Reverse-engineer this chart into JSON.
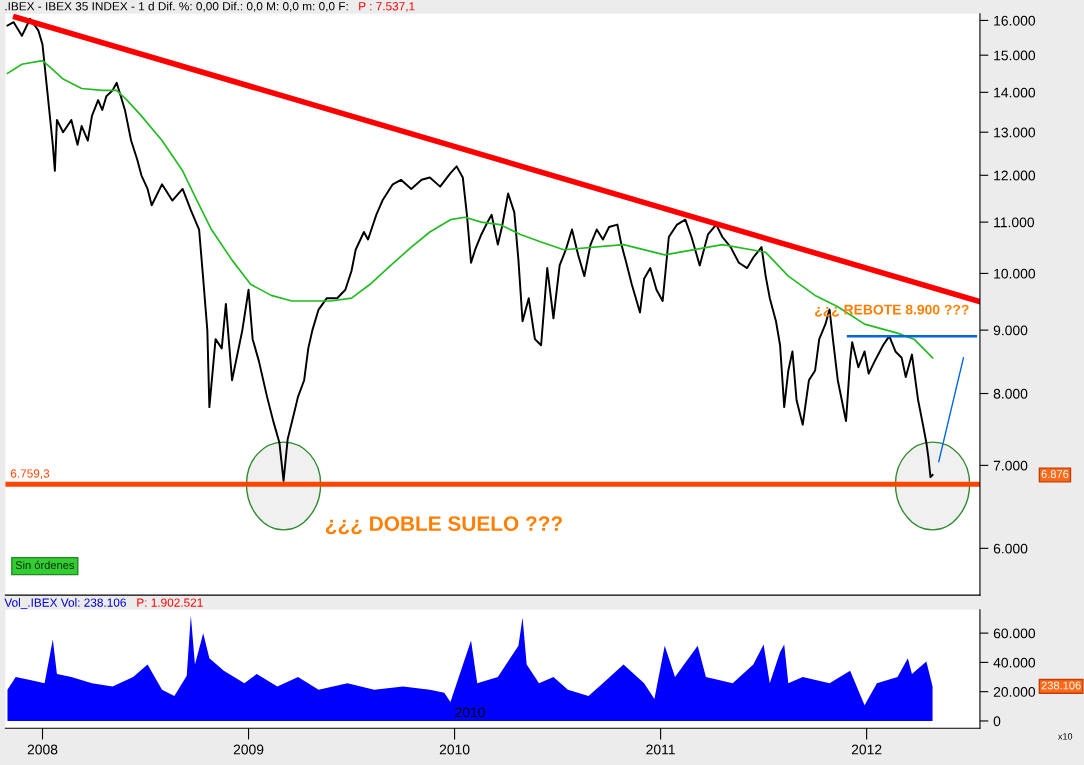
{
  "chart_data": [
    {
      "type": "line",
      "title": ".IBEX - IBEX 35 INDEX - 1 d Dif. %: 0,00 Dif.: 0,0 M: 0,0 m: 0,0 F:",
      "subtitle": "P : 7.537,1",
      "log": "y",
      "tick_labels": "y",
      "xlim": [
        2007.82,
        2012.55
      ],
      "ylim": [
        5500,
        16200
      ],
      "yticks": [
        {
          "value": 6000,
          "label": "6.000"
        },
        {
          "value": 7000,
          "label": "7.000"
        },
        {
          "value": 8000,
          "label": "8.000"
        },
        {
          "value": 9000,
          "label": "9.000"
        },
        {
          "value": 10000,
          "label": "10.000"
        },
        {
          "value": 11000,
          "label": "11.000"
        },
        {
          "value": 12000,
          "label": "12.000"
        },
        {
          "value": 13000,
          "label": "13.000"
        },
        {
          "value": 14000,
          "label": "14.000"
        },
        {
          "value": 15000,
          "label": "15.000"
        },
        {
          "value": 16000,
          "label": "16.000"
        }
      ],
      "series": [
        {
          "color": "#000000",
          "x": [
            2007.83,
            2007.86,
            2007.9,
            2007.94,
            2007.98,
            2008.0,
            2008.02,
            2008.05,
            2008.06,
            2008.07,
            2008.1,
            2008.14,
            2008.17,
            2008.19,
            2008.22,
            2008.24,
            2008.27,
            2008.29,
            2008.31,
            2008.34,
            2008.36,
            2008.38,
            2008.4,
            2008.43,
            2008.46,
            2008.48,
            2008.51,
            2008.53,
            2008.58,
            2008.63,
            2008.68,
            2008.72,
            2008.76,
            2008.78,
            2008.8,
            2008.81,
            2008.84,
            2008.87,
            2008.89,
            2008.92,
            2008.97,
            2009.0,
            2009.02,
            2009.05,
            2009.09,
            2009.12,
            2009.15,
            2009.17,
            2009.19,
            2009.22,
            2009.24,
            2009.27,
            2009.29,
            2009.31,
            2009.34,
            2009.38,
            2009.43,
            2009.47,
            2009.5,
            2009.52,
            2009.56,
            2009.58,
            2009.62,
            2009.65,
            2009.7,
            2009.74,
            2009.79,
            2009.84,
            2009.88,
            2009.93,
            2009.98,
            2010.01,
            2010.04,
            2010.06,
            2010.08,
            2010.1,
            2010.13,
            2010.16,
            2010.18,
            2010.21,
            2010.23,
            2010.26,
            2010.29,
            2010.31,
            2010.33,
            2010.36,
            2010.39,
            2010.42,
            2010.45,
            2010.48,
            2010.51,
            2010.54,
            2010.57,
            2010.6,
            2010.63,
            2010.66,
            2010.69,
            2010.72,
            2010.75,
            2010.79,
            2010.81,
            2010.83,
            2010.86,
            2010.9,
            2010.92,
            2010.95,
            2010.98,
            2011.01,
            2011.04,
            2011.08,
            2011.12,
            2011.15,
            2011.19,
            2011.23,
            2011.27,
            2011.3,
            2011.34,
            2011.38,
            2011.42,
            2011.45,
            2011.49,
            2011.51,
            2011.53,
            2011.56,
            2011.58,
            2011.6,
            2011.62,
            2011.64,
            2011.66,
            2011.69,
            2011.72,
            2011.75,
            2011.77,
            2011.8,
            2011.82,
            2011.84,
            2011.86,
            2011.9,
            2011.92,
            2011.93,
            2011.96,
            2011.99,
            2012.01,
            2012.04,
            2012.08,
            2012.11,
            2012.14,
            2012.17,
            2012.19,
            2012.22,
            2012.25,
            2012.27,
            2012.29,
            2012.3,
            2012.31,
            2012.32
          ],
          "values": [
            15850,
            15950,
            15550,
            16050,
            15700,
            15300,
            14200,
            12700,
            12100,
            13300,
            13000,
            13300,
            12700,
            13150,
            12800,
            13400,
            13800,
            13550,
            13900,
            14050,
            14250,
            13900,
            13550,
            12800,
            12350,
            12000,
            11700,
            11350,
            11800,
            11450,
            11700,
            11250,
            10850,
            9900,
            9000,
            7800,
            8850,
            8700,
            9450,
            8200,
            9000,
            9700,
            8850,
            8500,
            7950,
            7600,
            7300,
            6800,
            7350,
            7700,
            7950,
            8200,
            8700,
            9000,
            9350,
            9550,
            9550,
            9700,
            10050,
            10450,
            10800,
            10650,
            11150,
            11450,
            11800,
            11900,
            11700,
            11900,
            11950,
            11750,
            12050,
            12200,
            11950,
            11150,
            10200,
            10450,
            10750,
            11000,
            11150,
            10550,
            10900,
            11600,
            11200,
            10250,
            9150,
            9550,
            8850,
            8750,
            10100,
            9200,
            10150,
            10450,
            10850,
            10350,
            9950,
            10550,
            10850,
            10650,
            10900,
            10950,
            10550,
            10250,
            9800,
            9300,
            9900,
            10100,
            9700,
            9500,
            10700,
            10950,
            11050,
            10700,
            10150,
            10750,
            10950,
            10700,
            10500,
            10200,
            10100,
            10300,
            10500,
            9950,
            9550,
            9150,
            8750,
            7800,
            8350,
            8650,
            7900,
            7550,
            8200,
            8350,
            8850,
            9100,
            9350,
            8750,
            8200,
            7600,
            8500,
            8800,
            8400,
            8650,
            8300,
            8500,
            8750,
            8900,
            8650,
            8550,
            8250,
            8600,
            7900,
            7600,
            7300,
            7100,
            6850,
            6876
          ]
        },
        {
          "color": "#22bb22",
          "x": [
            2007.83,
            2007.9,
            2008.0,
            2008.05,
            2008.1,
            2008.19,
            2008.29,
            2008.36,
            2008.41,
            2008.48,
            2008.58,
            2008.68,
            2008.75,
            2008.82,
            2008.92,
            2009.01,
            2009.11,
            2009.21,
            2009.3,
            2009.4,
            2009.5,
            2009.59,
            2009.69,
            2009.79,
            2009.88,
            2009.98,
            2010.05,
            2010.13,
            2010.22,
            2010.32,
            2010.42,
            2010.53,
            2010.82,
            2011.02,
            2011.3,
            2011.51,
            2011.62,
            2011.75,
            2011.86,
            2011.99,
            2012.15,
            2012.23,
            2012.32
          ],
          "values": [
            14500,
            14750,
            14850,
            14600,
            14350,
            14100,
            14050,
            14050,
            13800,
            13400,
            12800,
            12100,
            11450,
            10850,
            10250,
            9800,
            9600,
            9500,
            9500,
            9500,
            9550,
            9800,
            10150,
            10500,
            10800,
            11050,
            11100,
            11000,
            10950,
            10750,
            10600,
            10450,
            10550,
            10350,
            10550,
            10400,
            9950,
            9600,
            9400,
            9100,
            8950,
            8850,
            8550
          ]
        },
        {
          "color": "#ff0000",
          "x": [
            2007.87,
            2012.54
          ],
          "values": [
            16100,
            9500
          ]
        },
        {
          "color": "#0066dd",
          "x": [
            2011.91,
            2012.53
          ],
          "values": [
            8900,
            8900
          ]
        },
        {
          "color": "#0066dd",
          "x": [
            2012.35,
            2012.47
          ],
          "values": [
            7050,
            8550
          ]
        }
      ],
      "ref_lines": [
        {
          "axis": "y",
          "value": 6759.3,
          "label": "6.759,3",
          "color": "#ff4400"
        }
      ],
      "annotations": [
        "6.876",
        "¿¿¿ REBOTE 8.900 ???",
        "¿¿¿ DOBLE SUELO ???",
        "Sin órdenes"
      ]
    },
    {
      "type": "area",
      "title": "Vol_.IBEX Vol: 238.106",
      "subtitle": "P: 1.902.521",
      "xlim": [
        2007.82,
        2012.55
      ],
      "ylim": [
        -5000,
        76000
      ],
      "xticks": [
        2008,
        2009,
        2010,
        2011,
        2012
      ],
      "yticks": [
        0,
        {
          "value": 20000,
          "label": "20.000"
        },
        {
          "value": 40000,
          "label": "40.000"
        },
        {
          "value": 60000,
          "label": "60.000"
        }
      ],
      "series": [
        {
          "color": "#0000ff",
          "x": [
            2007.83,
            2007.87,
            2007.94,
            2008.01,
            2008.05,
            2008.07,
            2008.14,
            2008.24,
            2008.34,
            2008.44,
            2008.51,
            2008.58,
            2008.64,
            2008.7,
            2008.72,
            2008.74,
            2008.78,
            2008.81,
            2008.88,
            2008.98,
            2009.04,
            2009.14,
            2009.24,
            2009.34,
            2009.48,
            2009.61,
            2009.75,
            2009.88,
            2009.95,
            2009.98,
            2010.08,
            2010.11,
            2010.21,
            2010.31,
            2010.33,
            2010.35,
            2010.41,
            2010.48,
            2010.55,
            2010.65,
            2010.72,
            2010.82,
            2010.92,
            2010.97,
            2011.02,
            2011.07,
            2011.18,
            2011.22,
            2011.35,
            2011.45,
            2011.5,
            2011.53,
            2011.58,
            2011.6,
            2011.62,
            2011.69,
            2011.82,
            2011.92,
            2011.99,
            2012.05,
            2012.15,
            2012.2,
            2012.22,
            2012.29,
            2012.32
          ],
          "values": [
            21400,
            30000,
            27900,
            25700,
            55700,
            32100,
            30000,
            25700,
            23600,
            30000,
            38600,
            21400,
            17100,
            30900,
            72000,
            38600,
            60000,
            42900,
            34300,
            25700,
            32100,
            23600,
            30000,
            21400,
            25700,
            21400,
            23600,
            21400,
            19300,
            12900,
            54900,
            25700,
            30000,
            51400,
            70700,
            38600,
            25700,
            30000,
            21400,
            17100,
            25700,
            38600,
            25700,
            15000,
            51400,
            30000,
            51400,
            30000,
            25700,
            38600,
            52300,
            25700,
            47100,
            52300,
            25700,
            30000,
            25700,
            34300,
            10700,
            25700,
            30000,
            42900,
            32100,
            40700,
            23600
          ]
        }
      ],
      "annotations": [
        "238.106",
        "x10",
        "2010"
      ]
    }
  ]
}
